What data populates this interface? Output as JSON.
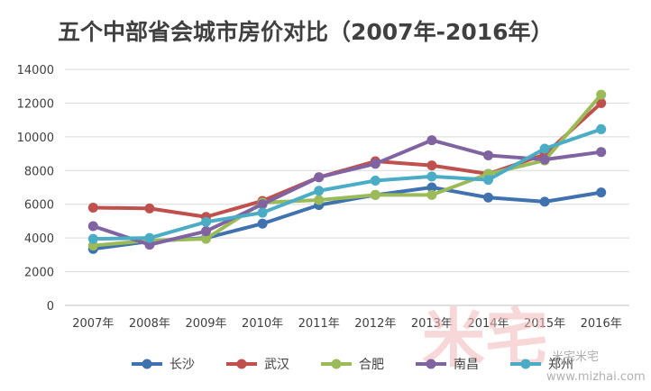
{
  "chart_data": {
    "type": "line",
    "title": "五个中部省会城市房价对比（2007年-2016年）",
    "categories": [
      "2007年",
      "2008年",
      "2009年",
      "2010年",
      "2011年",
      "2012年",
      "2013年",
      "2014年",
      "2015年",
      "2016年"
    ],
    "ylim": [
      0,
      14000
    ],
    "yticks": [
      0,
      2000,
      4000,
      6000,
      8000,
      10000,
      12000,
      14000
    ],
    "grid": true,
    "legend": "bottom",
    "series": [
      {
        "name": "长沙",
        "color": "#3f72af",
        "values": [
          3350,
          3800,
          4000,
          4850,
          5950,
          6550,
          7000,
          6400,
          6150,
          6700
        ]
      },
      {
        "name": "武汉",
        "color": "#c0504d",
        "values": [
          5800,
          5750,
          5250,
          6200,
          7600,
          8550,
          8300,
          7800,
          8950,
          12000
        ]
      },
      {
        "name": "合肥",
        "color": "#9bbb59",
        "values": [
          3550,
          3850,
          3950,
          6100,
          6250,
          6550,
          6550,
          7800,
          8600,
          12500
        ]
      },
      {
        "name": "南昌",
        "color": "#8064a2",
        "values": [
          4700,
          3600,
          4400,
          6000,
          7600,
          8400,
          9800,
          8900,
          8650,
          9100
        ]
      },
      {
        "name": "郑州",
        "color": "#4bacc6",
        "values": [
          3950,
          4000,
          4950,
          5500,
          6800,
          7400,
          7650,
          7450,
          9300,
          10450
        ]
      }
    ]
  },
  "watermark": {
    "brand_text": "米宅米宅",
    "url_text": "www.mizhai.com",
    "big_text": "米宅"
  }
}
